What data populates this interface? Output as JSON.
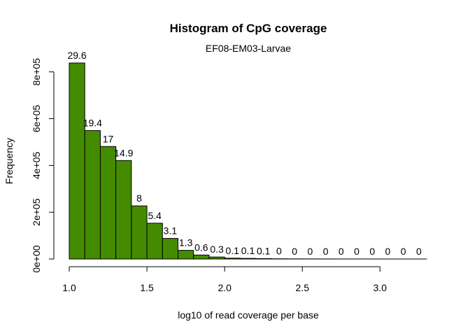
{
  "chart_data": {
    "type": "bar",
    "title": "Histogram of CpG coverage",
    "subtitle": "EF08-EM03-Larvae",
    "xlabel": "log10 of read coverage per base",
    "ylabel": "Frequency",
    "bar_color": "#458B00",
    "bin_width": 0.1,
    "bins": [
      {
        "x0": 1.0,
        "x1": 1.1,
        "value": 838000,
        "label": "29.6"
      },
      {
        "x0": 1.1,
        "x1": 1.2,
        "value": 549000,
        "label": "19.4"
      },
      {
        "x0": 1.2,
        "x1": 1.3,
        "value": 481000,
        "label": "17"
      },
      {
        "x0": 1.3,
        "x1": 1.4,
        "value": 421000,
        "label": "14.9"
      },
      {
        "x0": 1.4,
        "x1": 1.5,
        "value": 227000,
        "label": "8"
      },
      {
        "x0": 1.5,
        "x1": 1.6,
        "value": 153000,
        "label": "5.4"
      },
      {
        "x0": 1.6,
        "x1": 1.7,
        "value": 88000,
        "label": "3.1"
      },
      {
        "x0": 1.7,
        "x1": 1.8,
        "value": 37000,
        "label": "1.3"
      },
      {
        "x0": 1.8,
        "x1": 1.9,
        "value": 17000,
        "label": "0.6"
      },
      {
        "x0": 1.9,
        "x1": 2.0,
        "value": 8500,
        "label": "0.3"
      },
      {
        "x0": 2.0,
        "x1": 2.1,
        "value": 3500,
        "label": "0.1"
      },
      {
        "x0": 2.1,
        "x1": 2.2,
        "value": 2500,
        "label": "0.1"
      },
      {
        "x0": 2.2,
        "x1": 2.3,
        "value": 1800,
        "label": "0.1"
      },
      {
        "x0": 2.3,
        "x1": 2.4,
        "value": 900,
        "label": "0"
      },
      {
        "x0": 2.4,
        "x1": 2.5,
        "value": 600,
        "label": "0"
      },
      {
        "x0": 2.5,
        "x1": 2.6,
        "value": 400,
        "label": "0"
      },
      {
        "x0": 2.6,
        "x1": 2.7,
        "value": 300,
        "label": "0"
      },
      {
        "x0": 2.7,
        "x1": 2.8,
        "value": 200,
        "label": "0"
      },
      {
        "x0": 2.8,
        "x1": 2.9,
        "value": 150,
        "label": "0"
      },
      {
        "x0": 2.9,
        "x1": 3.0,
        "value": 100,
        "label": "0"
      },
      {
        "x0": 3.0,
        "x1": 3.1,
        "value": 80,
        "label": "0"
      },
      {
        "x0": 3.1,
        "x1": 3.2,
        "value": 60,
        "label": "0"
      },
      {
        "x0": 3.2,
        "x1": 3.3,
        "value": 40,
        "label": "0"
      }
    ],
    "x_ticks": [
      1.0,
      1.5,
      2.0,
      2.5,
      3.0
    ],
    "x_tick_labels": [
      "1.0",
      "1.5",
      "2.0",
      "2.5",
      "3.0"
    ],
    "xlim": [
      1.0,
      3.3
    ],
    "y_ticks": [
      0,
      200000,
      400000,
      600000,
      800000
    ],
    "y_tick_labels": [
      "0e+00",
      "2e+05",
      "4e+05",
      "6e+05",
      "8e+05"
    ],
    "ylim": [
      0,
      838000
    ],
    "grid": false,
    "legend": "none"
  }
}
